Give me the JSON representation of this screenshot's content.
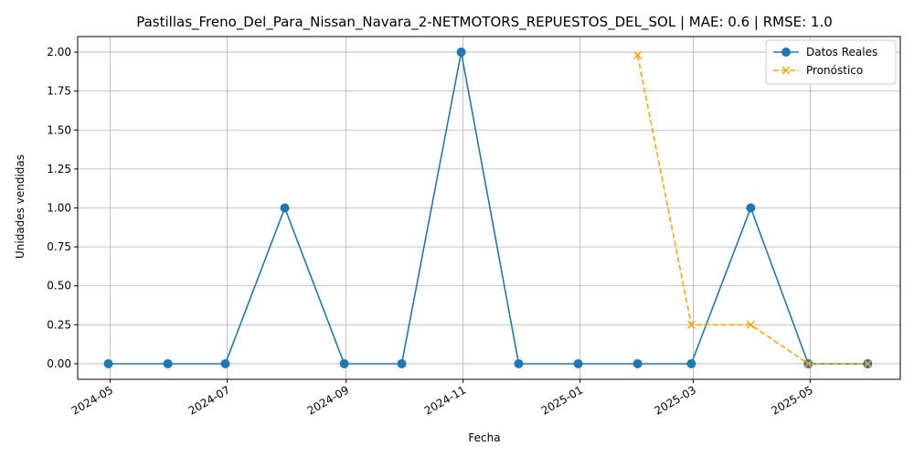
{
  "chart_data": {
    "type": "line",
    "title": "Pastillas_Freno_Del_Para_Nissan_Navara_2-NETMOTORS_REPUESTOS_DEL_SOL | MAE: 0.6 | RMSE: 1.0",
    "xlabel": "Fecha",
    "ylabel": "Unidades vendidas",
    "ylim": [
      -0.1,
      2.1
    ],
    "xlim": [
      "2024-04-14",
      "2025-06-17"
    ],
    "grid": true,
    "legend_position": "top-right",
    "x_ticks": [
      "2024-05-01",
      "2024-07-01",
      "2024-09-01",
      "2024-11-01",
      "2025-01-01",
      "2025-03-01",
      "2025-05-01"
    ],
    "x_tick_labels": [
      "2024-05",
      "2024-07",
      "2024-09",
      "2024-11",
      "2025-01",
      "2025-03",
      "2025-05"
    ],
    "y_ticks": [
      0.0,
      0.25,
      0.5,
      0.75,
      1.0,
      1.25,
      1.5,
      1.75,
      2.0
    ],
    "y_tick_labels": [
      "0.00",
      "0.25",
      "0.50",
      "0.75",
      "1.00",
      "1.25",
      "1.50",
      "1.75",
      "2.00"
    ],
    "series": [
      {
        "name": "Datos Reales",
        "color": "#1f77b4",
        "style": "solid",
        "marker": "circle",
        "x": [
          "2024-04-30",
          "2024-05-31",
          "2024-06-30",
          "2024-07-31",
          "2024-08-31",
          "2024-09-30",
          "2024-10-31",
          "2024-11-30",
          "2024-12-31",
          "2025-01-31",
          "2025-02-28",
          "2025-03-31",
          "2025-04-30",
          "2025-05-31"
        ],
        "values": [
          0,
          0,
          0,
          1,
          0,
          0,
          2,
          0,
          0,
          0,
          0,
          1,
          0,
          0
        ]
      },
      {
        "name": "Pronóstico",
        "color": "#ffa500",
        "style": "dashed",
        "marker": "x",
        "x": [
          "2025-01-31",
          "2025-02-28",
          "2025-03-31",
          "2025-04-30",
          "2025-05-31"
        ],
        "values": [
          1.98,
          0.25,
          0.25,
          0.0,
          0.0
        ]
      }
    ]
  }
}
